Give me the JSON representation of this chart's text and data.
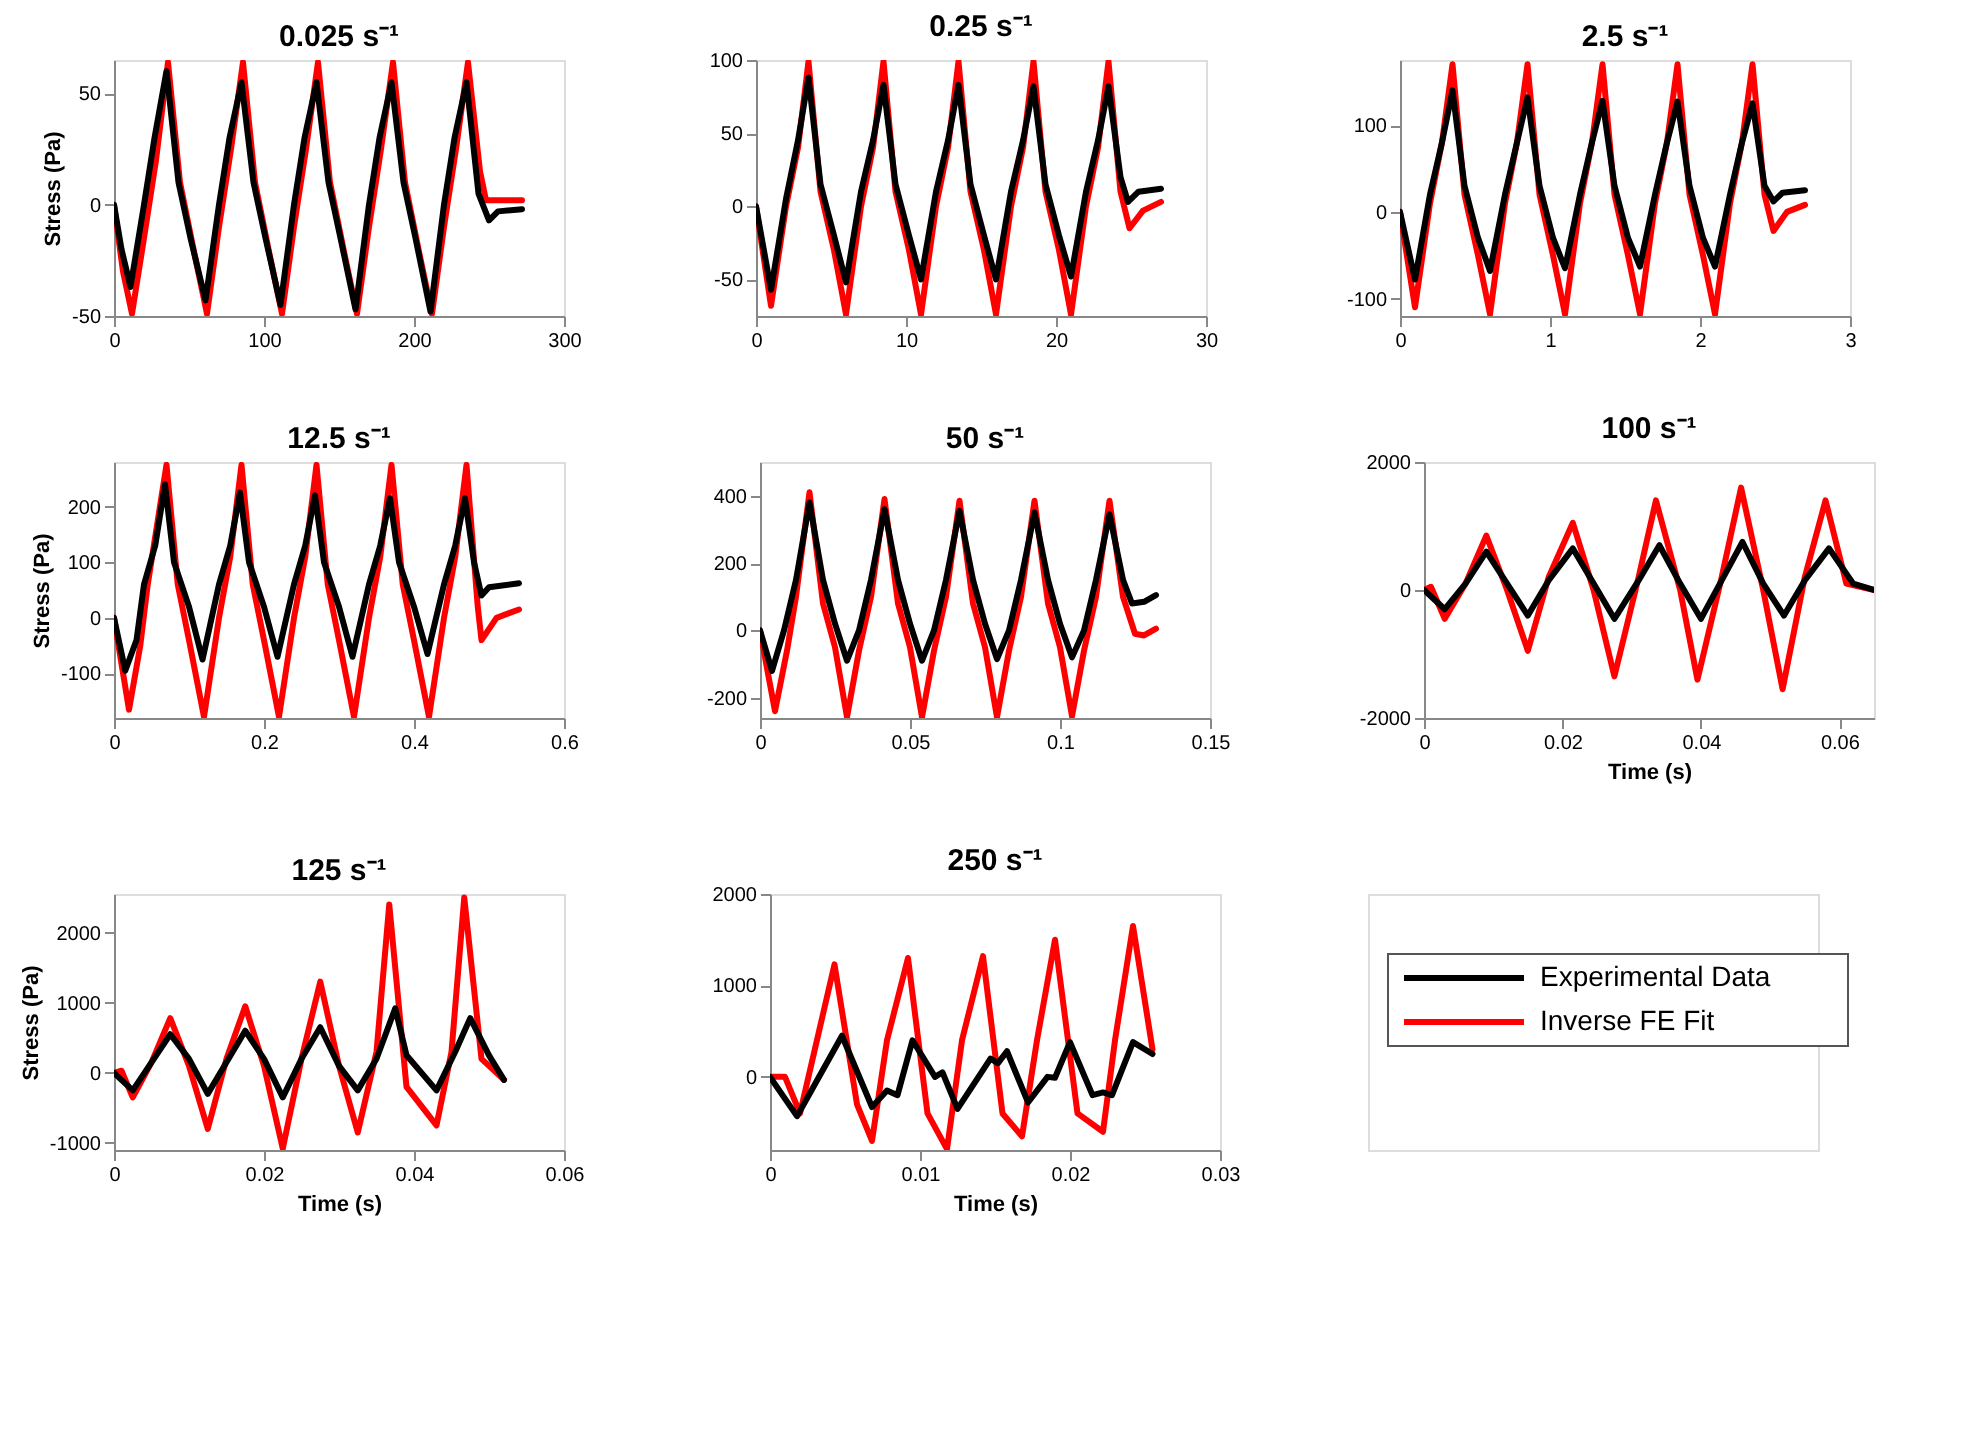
{
  "chart_data": [
    {
      "type": "line",
      "title": "0.025 s⁻¹",
      "ylabel": "Stress (Pa)",
      "xlim": [
        0,
        300
      ],
      "xticks": [
        0,
        100,
        200,
        300
      ],
      "ylim": [
        -50,
        65
      ],
      "yticks": [
        -50,
        0,
        50
      ],
      "grid": false,
      "series": [
        {
          "color": "#000000",
          "x": [
            0,
            5,
            11,
            20,
            27,
            35,
            43,
            51,
            61,
            70,
            77,
            85,
            93,
            101,
            111,
            120,
            127,
            135,
            143,
            151,
            161,
            170,
            177,
            185,
            193,
            201,
            211,
            220,
            227,
            235,
            243,
            250,
            256,
            272
          ],
          "values": [
            0,
            -20,
            -37,
            0,
            30,
            60,
            10,
            -15,
            -43,
            0,
            30,
            55,
            10,
            -15,
            -45,
            0,
            30,
            55,
            10,
            -15,
            -47,
            0,
            30,
            55,
            10,
            -15,
            -48,
            0,
            30,
            55,
            5,
            -7,
            -3,
            -2
          ]
        },
        {
          "color": "#ff0000",
          "x": [
            0,
            6,
            12,
            20,
            28,
            36,
            44,
            53,
            62,
            70,
            78,
            86,
            94,
            103,
            112,
            120,
            128,
            136,
            144,
            153,
            162,
            170,
            178,
            186,
            194,
            203,
            212,
            220,
            228,
            236,
            244,
            248,
            272
          ],
          "values": [
            0,
            -30,
            -49,
            -15,
            20,
            64,
            10,
            -20,
            -49,
            -10,
            25,
            64,
            10,
            -20,
            -49,
            -10,
            25,
            64,
            10,
            -20,
            -49,
            -10,
            25,
            64,
            10,
            -20,
            -49,
            -10,
            25,
            64,
            15,
            2,
            2
          ]
        }
      ]
    },
    {
      "type": "line",
      "title": "0.25 s⁻¹",
      "xlim": [
        0,
        30
      ],
      "xticks": [
        0,
        10,
        20,
        30
      ],
      "ylim": [
        -75,
        100
      ],
      "yticks": [
        -50,
        0,
        50,
        100
      ],
      "grid": false,
      "series": [
        {
          "color": "#000000",
          "x": [
            0,
            1,
            2,
            2.8,
            3.5,
            4.3,
            5.2,
            6,
            7,
            7.8,
            8.5,
            9.3,
            10.2,
            11,
            12,
            12.8,
            13.5,
            14.3,
            15.2,
            16,
            17,
            17.8,
            18.5,
            19.3,
            20.2,
            21,
            22,
            22.8,
            23.5,
            24.3,
            24.8,
            25.5,
            27
          ],
          "values": [
            0,
            -57,
            5,
            45,
            88,
            15,
            -20,
            -52,
            10,
            45,
            83,
            15,
            -20,
            -50,
            10,
            45,
            83,
            15,
            -20,
            -50,
            10,
            45,
            82,
            15,
            -20,
            -48,
            10,
            45,
            82,
            20,
            3,
            10,
            12
          ]
        },
        {
          "color": "#ff0000",
          "x": [
            0,
            1,
            2,
            2.8,
            3.5,
            4.3,
            5.2,
            6,
            7,
            7.8,
            8.5,
            9.3,
            10.2,
            11,
            12,
            12.8,
            13.5,
            14.3,
            15.2,
            16,
            17,
            17.8,
            18.5,
            19.3,
            20.2,
            21,
            22,
            22.8,
            23.5,
            24.3,
            24.9,
            25.8,
            27
          ],
          "values": [
            0,
            -68,
            0,
            40,
            99,
            10,
            -30,
            -74,
            0,
            40,
            99,
            10,
            -30,
            -74,
            0,
            40,
            99,
            10,
            -30,
            -74,
            0,
            40,
            99,
            10,
            -30,
            -74,
            0,
            40,
            99,
            10,
            -15,
            -3,
            3
          ]
        }
      ]
    },
    {
      "type": "line",
      "title": "2.5 s⁻¹",
      "xlim": [
        0,
        3
      ],
      "xticks": [
        0,
        1,
        2,
        3
      ],
      "ylim": [
        -120,
        175
      ],
      "yticks": [
        -100,
        0,
        100
      ],
      "grid": false,
      "series": [
        {
          "color": "#000000",
          "x": [
            0,
            0.1,
            0.2,
            0.28,
            0.35,
            0.43,
            0.52,
            0.6,
            0.7,
            0.78,
            0.85,
            0.93,
            1.02,
            1.1,
            1.2,
            1.28,
            1.35,
            1.43,
            1.52,
            1.6,
            1.7,
            1.78,
            1.85,
            1.93,
            2.02,
            2.1,
            2.2,
            2.28,
            2.35,
            2.43,
            2.49,
            2.55,
            2.7
          ],
          "values": [
            0,
            -78,
            20,
            80,
            140,
            30,
            -30,
            -68,
            20,
            80,
            132,
            30,
            -30,
            -65,
            20,
            80,
            128,
            30,
            -30,
            -63,
            20,
            80,
            127,
            30,
            -30,
            -63,
            20,
            80,
            125,
            30,
            12,
            22,
            25
          ]
        },
        {
          "color": "#ff0000",
          "x": [
            0,
            0.1,
            0.2,
            0.28,
            0.35,
            0.43,
            0.52,
            0.6,
            0.7,
            0.78,
            0.85,
            0.93,
            1.02,
            1.1,
            1.2,
            1.28,
            1.35,
            1.43,
            1.52,
            1.6,
            1.7,
            1.78,
            1.85,
            1.93,
            2.02,
            2.1,
            2.2,
            2.28,
            2.35,
            2.43,
            2.49,
            2.58,
            2.7
          ],
          "values": [
            0,
            -110,
            10,
            80,
            170,
            20,
            -50,
            -118,
            10,
            80,
            170,
            20,
            -50,
            -118,
            10,
            80,
            170,
            20,
            -50,
            -118,
            10,
            80,
            170,
            20,
            -50,
            -118,
            10,
            80,
            170,
            20,
            -22,
            0,
            8
          ]
        }
      ]
    },
    {
      "type": "line",
      "title": "12.5 s⁻¹",
      "ylabel": "Stress (Pa)",
      "xlim": [
        0,
        0.6
      ],
      "xticks": [
        0,
        0.2,
        0.4,
        0.6
      ],
      "ylim": [
        -180,
        280
      ],
      "yticks": [
        -100,
        0,
        100,
        200
      ],
      "grid": false,
      "series": [
        {
          "color": "#000000",
          "x": [
            0,
            0.015,
            0.03,
            0.04,
            0.055,
            0.068,
            0.08,
            0.1,
            0.118,
            0.14,
            0.155,
            0.168,
            0.18,
            0.2,
            0.218,
            0.24,
            0.255,
            0.268,
            0.28,
            0.3,
            0.318,
            0.34,
            0.355,
            0.368,
            0.38,
            0.4,
            0.418,
            0.44,
            0.455,
            0.468,
            0.48,
            0.49,
            0.5,
            0.54
          ],
          "values": [
            0,
            -95,
            -40,
            60,
            130,
            240,
            100,
            20,
            -75,
            60,
            130,
            225,
            100,
            20,
            -70,
            60,
            130,
            220,
            100,
            20,
            -70,
            60,
            130,
            215,
            100,
            20,
            -65,
            60,
            130,
            215,
            100,
            40,
            55,
            62
          ]
        },
        {
          "color": "#ff0000",
          "x": [
            0,
            0.02,
            0.035,
            0.045,
            0.07,
            0.085,
            0.1,
            0.12,
            0.14,
            0.155,
            0.17,
            0.185,
            0.2,
            0.22,
            0.24,
            0.255,
            0.27,
            0.285,
            0.3,
            0.32,
            0.34,
            0.355,
            0.37,
            0.385,
            0.4,
            0.42,
            0.44,
            0.455,
            0.47,
            0.485,
            0.49,
            0.51,
            0.54
          ],
          "values": [
            0,
            -165,
            -50,
            60,
            275,
            60,
            -40,
            -178,
            0,
            110,
            275,
            60,
            -40,
            -178,
            0,
            110,
            275,
            60,
            -40,
            -178,
            0,
            110,
            275,
            60,
            -40,
            -178,
            0,
            110,
            275,
            20,
            -40,
            0,
            15
          ]
        }
      ]
    },
    {
      "type": "line",
      "title": "50 s⁻¹",
      "xlim": [
        0,
        0.15
      ],
      "xticks": [
        0,
        0.05,
        0.1,
        0.15
      ],
      "ylim": [
        -260,
        500
      ],
      "yticks": [
        -200,
        0,
        200,
        400
      ],
      "grid": false,
      "series": [
        {
          "color": "#000000",
          "x": [
            0,
            0.004,
            0.008,
            0.012,
            0.0165,
            0.021,
            0.025,
            0.029,
            0.033,
            0.037,
            0.0415,
            0.046,
            0.05,
            0.054,
            0.058,
            0.062,
            0.0665,
            0.071,
            0.075,
            0.079,
            0.083,
            0.087,
            0.0915,
            0.096,
            0.1,
            0.104,
            0.108,
            0.112,
            0.1165,
            0.121,
            0.124,
            0.128,
            0.132
          ],
          "values": [
            0,
            -120,
            0,
            150,
            380,
            150,
            20,
            -90,
            0,
            150,
            360,
            150,
            20,
            -90,
            0,
            150,
            355,
            150,
            20,
            -85,
            0,
            150,
            350,
            150,
            20,
            -80,
            0,
            150,
            345,
            150,
            80,
            85,
            105
          ]
        },
        {
          "color": "#ff0000",
          "x": [
            0,
            0.005,
            0.009,
            0.012,
            0.0165,
            0.021,
            0.025,
            0.029,
            0.033,
            0.037,
            0.0415,
            0.046,
            0.05,
            0.054,
            0.058,
            0.062,
            0.0665,
            0.071,
            0.075,
            0.079,
            0.083,
            0.087,
            0.0915,
            0.096,
            0.1,
            0.104,
            0.108,
            0.112,
            0.1165,
            0.121,
            0.125,
            0.128,
            0.132
          ],
          "values": [
            0,
            -240,
            -60,
            100,
            410,
            80,
            -50,
            -258,
            -60,
            100,
            390,
            80,
            -50,
            -258,
            -60,
            100,
            385,
            80,
            -50,
            -258,
            -60,
            100,
            385,
            80,
            -50,
            -255,
            -60,
            100,
            385,
            100,
            -10,
            -15,
            5
          ]
        }
      ]
    },
    {
      "type": "line",
      "title": "100 s⁻¹",
      "xlabel": "Time (s)",
      "xlim": [
        0,
        0.065
      ],
      "xticks": [
        0,
        0.02,
        0.04,
        0.06
      ],
      "ylim": [
        -2000,
        2000
      ],
      "yticks": [
        -2000,
        0,
        2000
      ],
      "grid": false,
      "series": [
        {
          "color": "#000000",
          "x": [
            0,
            0.003,
            0.006,
            0.009,
            0.012,
            0.015,
            0.018,
            0.0215,
            0.0245,
            0.0275,
            0.031,
            0.034,
            0.037,
            0.04,
            0.043,
            0.046,
            0.049,
            0.052,
            0.055,
            0.0585,
            0.062,
            0.065
          ],
          "values": [
            0,
            -300,
            100,
            600,
            100,
            -400,
            150,
            650,
            100,
            -450,
            150,
            700,
            100,
            -450,
            150,
            750,
            100,
            -400,
            150,
            650,
            100,
            0
          ]
        },
        {
          "color": "#ff0000",
          "x": [
            0,
            0.001,
            0.003,
            0.006,
            0.009,
            0.012,
            0.015,
            0.018,
            0.0215,
            0.0245,
            0.0275,
            0.031,
            0.0335,
            0.037,
            0.0395,
            0.043,
            0.0458,
            0.049,
            0.0518,
            0.055,
            0.058,
            0.061,
            0.065
          ],
          "values": [
            0,
            50,
            -450,
            100,
            850,
            0,
            -950,
            200,
            1050,
            0,
            -1350,
            200,
            1400,
            0,
            -1400,
            200,
            1600,
            0,
            -1550,
            200,
            1400,
            100,
            0
          ]
        }
      ]
    },
    {
      "type": "line",
      "title": "125 s⁻¹",
      "xlabel": "Time (s)",
      "ylabel": "Stress (Pa)",
      "xlim": [
        0,
        0.06
      ],
      "xticks": [
        0,
        0.02,
        0.04,
        0.06
      ],
      "ylim": [
        -1100,
        2550
      ],
      "yticks": [
        -1000,
        0,
        1000,
        2000
      ],
      "grid": false,
      "series": [
        {
          "color": "#000000",
          "x": [
            0,
            0.0025,
            0.005,
            0.0075,
            0.01,
            0.0125,
            0.015,
            0.0175,
            0.02,
            0.0225,
            0.025,
            0.0275,
            0.03,
            0.0325,
            0.035,
            0.0375,
            0.039,
            0.043,
            0.0455,
            0.0475,
            0.05,
            0.052
          ],
          "values": [
            0,
            -250,
            150,
            550,
            200,
            -300,
            150,
            600,
            200,
            -350,
            200,
            650,
            100,
            -250,
            200,
            920,
            250,
            -250,
            300,
            780,
            250,
            -100
          ]
        },
        {
          "color": "#ff0000",
          "x": [
            0,
            0.001,
            0.0025,
            0.005,
            0.0075,
            0.01,
            0.0125,
            0.015,
            0.0175,
            0.02,
            0.0225,
            0.025,
            0.0275,
            0.03,
            0.0325,
            0.035,
            0.0367,
            0.039,
            0.043,
            0.045,
            0.0467,
            0.049,
            0.052
          ],
          "values": [
            0,
            30,
            -350,
            150,
            780,
            100,
            -800,
            200,
            950,
            100,
            -1080,
            200,
            1300,
            100,
            -850,
            300,
            2400,
            -200,
            -750,
            300,
            2500,
            200,
            -100
          ]
        }
      ]
    },
    {
      "type": "line",
      "title": "250 s⁻¹",
      "xlabel": "Time (s)",
      "xlim": [
        0,
        0.03
      ],
      "xticks": [
        0,
        0.01,
        0.02,
        0.03
      ],
      "ylim": [
        -800,
        2000
      ],
      "yticks": [
        0,
        1000,
        2000
      ],
      "grid": false,
      "legend": "right",
      "series": [
        {
          "name": "Experimental Data",
          "color": "#000000",
          "x": [
            0,
            0.0018,
            0.0048,
            0.0068,
            0.0078,
            0.0085,
            0.0095,
            0.011,
            0.0115,
            0.0125,
            0.0147,
            0.0152,
            0.0158,
            0.0172,
            0.0185,
            0.019,
            0.02,
            0.0215,
            0.0222,
            0.0228,
            0.0242,
            0.0255
          ],
          "values": [
            0,
            -430,
            450,
            -330,
            -150,
            -200,
            400,
            0,
            50,
            -350,
            200,
            150,
            280,
            -280,
            0,
            -10,
            380,
            -200,
            -170,
            -200,
            380,
            250
          ]
        },
        {
          "name": "Inverse FE Fit",
          "color": "#ff0000",
          "x": [
            0,
            0.001,
            0.002,
            0.0043,
            0.0058,
            0.0068,
            0.0078,
            0.0092,
            0.0105,
            0.0118,
            0.0128,
            0.0142,
            0.0155,
            0.0168,
            0.0178,
            0.019,
            0.0205,
            0.0222,
            0.023,
            0.0242,
            0.0255
          ],
          "values": [
            0,
            0,
            -400,
            1230,
            -300,
            -700,
            400,
            1300,
            -400,
            -790,
            400,
            1320,
            -400,
            -650,
            400,
            1500,
            -400,
            -600,
            400,
            1650,
            300
          ]
        }
      ]
    }
  ]
}
